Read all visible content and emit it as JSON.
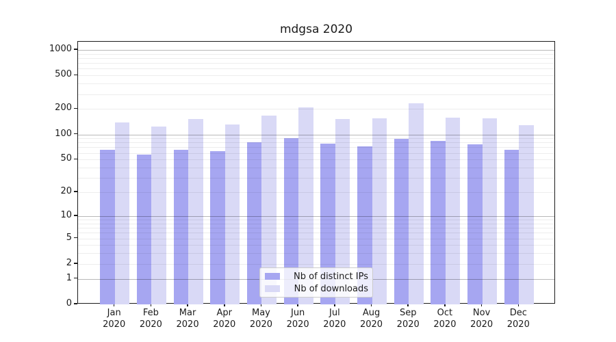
{
  "title": "mdgsa 2020",
  "colors": {
    "bar_ips": "#a6a6f1",
    "bar_downloads": "#d9d9f6",
    "grid_major": "rgba(0,0,0,0.28)",
    "grid_minor": "rgba(0,0,0,0.07)",
    "axis": "#1a1a1a",
    "text": "#1a1a1a",
    "legend_border": "#cccccc",
    "legend_bg": "rgba(255,255,255,0.8)"
  },
  "chart_data": {
    "type": "bar",
    "title": "mdgsa 2020",
    "months": [
      "Jan",
      "Feb",
      "Mar",
      "Apr",
      "May",
      "Jun",
      "Jul",
      "Aug",
      "Sep",
      "Oct",
      "Nov",
      "Dec"
    ],
    "year": "2020",
    "categories": [
      "Jan 2020",
      "Feb 2020",
      "Mar 2020",
      "Apr 2020",
      "May 2020",
      "Jun 2020",
      "Jul 2020",
      "Aug 2020",
      "Sep 2020",
      "Oct 2020",
      "Nov 2020",
      "Dec 2020"
    ],
    "series": [
      {
        "name": "Nb of distinct IPs",
        "values": [
          66,
          57,
          66,
          63,
          81,
          91,
          78,
          72,
          88,
          84,
          76,
          66
        ]
      },
      {
        "name": "Nb of downloads",
        "values": [
          138,
          125,
          153,
          131,
          166,
          210,
          151,
          155,
          233,
          158,
          156,
          128
        ]
      }
    ],
    "yscale": "log10(value+1)",
    "y_ticks": [
      1000,
      500,
      200,
      100,
      50,
      20,
      10,
      5,
      2,
      1,
      0
    ],
    "ylim": [
      0,
      1250
    ],
    "xlabel": "",
    "ylabel": "",
    "grid": true,
    "legend_position": "lower center"
  }
}
